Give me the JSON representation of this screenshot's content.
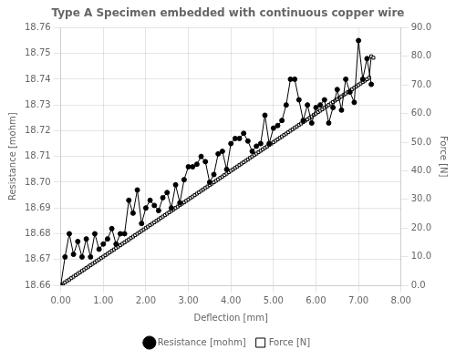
{
  "chart_data": {
    "type": "line",
    "title": "Type A Specimen embedded with continuous copper wire",
    "xlabel": "Deflection [mm]",
    "ylabel": "Resistance [mohm]",
    "y2label": "Force [N]",
    "xlim": [
      0.0,
      8.0
    ],
    "xticks": [
      {
        "value": 0.0,
        "label": "0.00"
      },
      {
        "value": 1.0,
        "label": "1.00"
      },
      {
        "value": 2.0,
        "label": "2.00"
      },
      {
        "value": 3.0,
        "label": "3.00"
      },
      {
        "value": 4.0,
        "label": "4.00"
      },
      {
        "value": 5.0,
        "label": "5.00"
      },
      {
        "value": 6.0,
        "label": "6.00"
      },
      {
        "value": 7.0,
        "label": "7.00"
      },
      {
        "value": 8.0,
        "label": "8.00"
      }
    ],
    "ylim": [
      18.66,
      18.76
    ],
    "yticks": [
      {
        "value": 18.66,
        "label": "18.66"
      },
      {
        "value": 18.67,
        "label": "18.67"
      },
      {
        "value": 18.68,
        "label": "18.68"
      },
      {
        "value": 18.69,
        "label": "18.69"
      },
      {
        "value": 18.7,
        "label": "18.70"
      },
      {
        "value": 18.71,
        "label": "18.71"
      },
      {
        "value": 18.72,
        "label": "18.72"
      },
      {
        "value": 18.73,
        "label": "18.73"
      },
      {
        "value": 18.74,
        "label": "18.74"
      },
      {
        "value": 18.75,
        "label": "18.75"
      },
      {
        "value": 18.76,
        "label": "18.76"
      }
    ],
    "y2lim": [
      0.0,
      90.0
    ],
    "y2ticks": [
      {
        "value": 0.0,
        "label": "0.0"
      },
      {
        "value": 10.0,
        "label": "10.0"
      },
      {
        "value": 20.0,
        "label": "20.0"
      },
      {
        "value": 30.0,
        "label": "30.0"
      },
      {
        "value": 40.0,
        "label": "40.0"
      },
      {
        "value": 50.0,
        "label": "50.0"
      },
      {
        "value": 60.0,
        "label": "60.0"
      },
      {
        "value": 70.0,
        "label": "70.0"
      },
      {
        "value": 80.0,
        "label": "80.0"
      },
      {
        "value": 90.0,
        "label": "90.0"
      }
    ],
    "grid": true,
    "legend": "bottom",
    "series": [
      {
        "name": "Resistance [mohm]",
        "color": "#000000",
        "marker": "circle",
        "axis": "y",
        "x": [
          0.0,
          0.1,
          0.2,
          0.3,
          0.4,
          0.5,
          0.6,
          0.7,
          0.8,
          0.9,
          1.0,
          1.1,
          1.2,
          1.3,
          1.4,
          1.5,
          1.6,
          1.7,
          1.8,
          1.9,
          2.0,
          2.1,
          2.2,
          2.3,
          2.4,
          2.5,
          2.6,
          2.7,
          2.8,
          2.9,
          3.0,
          3.1,
          3.2,
          3.3,
          3.4,
          3.5,
          3.6,
          3.7,
          3.8,
          3.9,
          4.0,
          4.1,
          4.2,
          4.3,
          4.4,
          4.5,
          4.6,
          4.7,
          4.8,
          4.9,
          5.0,
          5.1,
          5.2,
          5.3,
          5.4,
          5.5,
          5.6,
          5.7,
          5.8,
          5.9,
          6.0,
          6.1,
          6.2,
          6.3,
          6.4,
          6.5,
          6.6,
          6.7,
          6.8,
          6.9,
          7.0,
          7.1,
          7.2,
          7.3
        ],
        "values": [
          18.66,
          18.671,
          18.68,
          18.672,
          18.677,
          18.671,
          18.678,
          18.671,
          18.68,
          18.674,
          18.676,
          18.678,
          18.682,
          18.676,
          18.68,
          18.68,
          18.693,
          18.688,
          18.697,
          18.684,
          18.69,
          18.693,
          18.691,
          18.689,
          18.694,
          18.696,
          18.69,
          18.699,
          18.692,
          18.701,
          18.706,
          18.706,
          18.707,
          18.71,
          18.708,
          18.7,
          18.703,
          18.711,
          18.712,
          18.705,
          18.715,
          18.717,
          18.717,
          18.719,
          18.716,
          18.712,
          18.714,
          18.715,
          18.726,
          18.715,
          18.721,
          18.722,
          18.724,
          18.73,
          18.74,
          18.74,
          18.732,
          18.724,
          18.73,
          18.723,
          18.729,
          18.73,
          18.732,
          18.723,
          18.729,
          18.736,
          18.728,
          18.74,
          18.735,
          18.731,
          18.755,
          18.74,
          18.748,
          18.738
        ]
      },
      {
        "name": "Force [N]",
        "color": "#000000",
        "marker": "open_square",
        "axis": "y2",
        "x": [
          0.0,
          0.05,
          0.1,
          0.15,
          0.2,
          0.25,
          0.3,
          0.35,
          0.4,
          0.45,
          0.5,
          0.55,
          0.6,
          0.65,
          0.7,
          0.75,
          0.8,
          0.85,
          0.9,
          0.95,
          1.0,
          1.05,
          1.1,
          1.15,
          1.2,
          1.25,
          1.3,
          1.35,
          1.4,
          1.45,
          1.5,
          1.55,
          1.6,
          1.65,
          1.7,
          1.75,
          1.8,
          1.85,
          1.9,
          1.95,
          2.0,
          2.05,
          2.1,
          2.15,
          2.2,
          2.25,
          2.3,
          2.35,
          2.4,
          2.45,
          2.5,
          2.55,
          2.6,
          2.65,
          2.7,
          2.75,
          2.8,
          2.85,
          2.9,
          2.95,
          3.0,
          3.05,
          3.1,
          3.15,
          3.2,
          3.25,
          3.3,
          3.35,
          3.4,
          3.45,
          3.5,
          3.55,
          3.6,
          3.65,
          3.7,
          3.75,
          3.8,
          3.85,
          3.9,
          3.95,
          4.0,
          4.05,
          4.1,
          4.15,
          4.2,
          4.25,
          4.3,
          4.35,
          4.4,
          4.45,
          4.5,
          4.55,
          4.6,
          4.65,
          4.7,
          4.75,
          4.8,
          4.85,
          4.9,
          4.95,
          5.0,
          5.05,
          5.1,
          5.15,
          5.2,
          5.25,
          5.3,
          5.35,
          5.4,
          5.45,
          5.5,
          5.55,
          5.6,
          5.65,
          5.7,
          5.75,
          5.8,
          5.85,
          5.9,
          5.95,
          6.0,
          6.05,
          6.1,
          6.15,
          6.2,
          6.25,
          6.3,
          6.35,
          6.4,
          6.45,
          6.5,
          6.55,
          6.6,
          6.65,
          6.7,
          6.75,
          6.8,
          6.85,
          6.9,
          6.95,
          7.0,
          7.05,
          7.1,
          7.15,
          7.2,
          7.25,
          7.3,
          7.35
        ],
        "values": [
          0.0,
          0.5,
          1.0,
          1.5,
          2.0,
          2.5,
          3.0,
          3.5,
          4.0,
          4.5,
          5.0,
          5.5,
          6.0,
          6.5,
          7.0,
          7.5,
          8.0,
          8.5,
          9.0,
          9.5,
          10.0,
          10.5,
          11.0,
          11.5,
          12.0,
          12.5,
          13.0,
          13.5,
          14.0,
          14.5,
          15.0,
          15.5,
          16.0,
          16.5,
          17.0,
          17.5,
          18.0,
          18.5,
          19.0,
          19.5,
          20.0,
          20.5,
          21.0,
          21.5,
          22.0,
          22.5,
          23.0,
          23.5,
          24.0,
          24.5,
          25.0,
          25.5,
          26.0,
          26.5,
          27.0,
          27.5,
          28.0,
          28.5,
          29.0,
          29.5,
          30.0,
          30.5,
          31.0,
          31.5,
          32.0,
          32.5,
          33.0,
          33.5,
          34.0,
          34.5,
          35.0,
          35.5,
          36.0,
          36.5,
          37.0,
          37.5,
          38.0,
          38.5,
          39.0,
          39.5,
          40.0,
          40.5,
          41.0,
          41.5,
          42.0,
          42.5,
          43.0,
          43.5,
          44.0,
          44.5,
          45.0,
          45.5,
          46.0,
          46.5,
          47.0,
          47.5,
          48.0,
          48.5,
          49.0,
          49.5,
          50.0,
          50.5,
          51.0,
          51.5,
          52.0,
          52.5,
          53.0,
          53.5,
          54.0,
          54.5,
          55.0,
          55.5,
          56.0,
          56.5,
          57.0,
          57.5,
          58.0,
          58.5,
          59.0,
          59.5,
          60.0,
          60.5,
          61.0,
          61.5,
          62.0,
          62.5,
          63.0,
          63.5,
          64.0,
          64.5,
          65.0,
          65.5,
          66.0,
          66.5,
          67.0,
          67.5,
          68.0,
          68.5,
          69.0,
          69.5,
          70.0,
          70.5,
          71.0,
          71.5,
          72.0,
          72.5,
          80.0,
          79.5
        ]
      }
    ]
  }
}
